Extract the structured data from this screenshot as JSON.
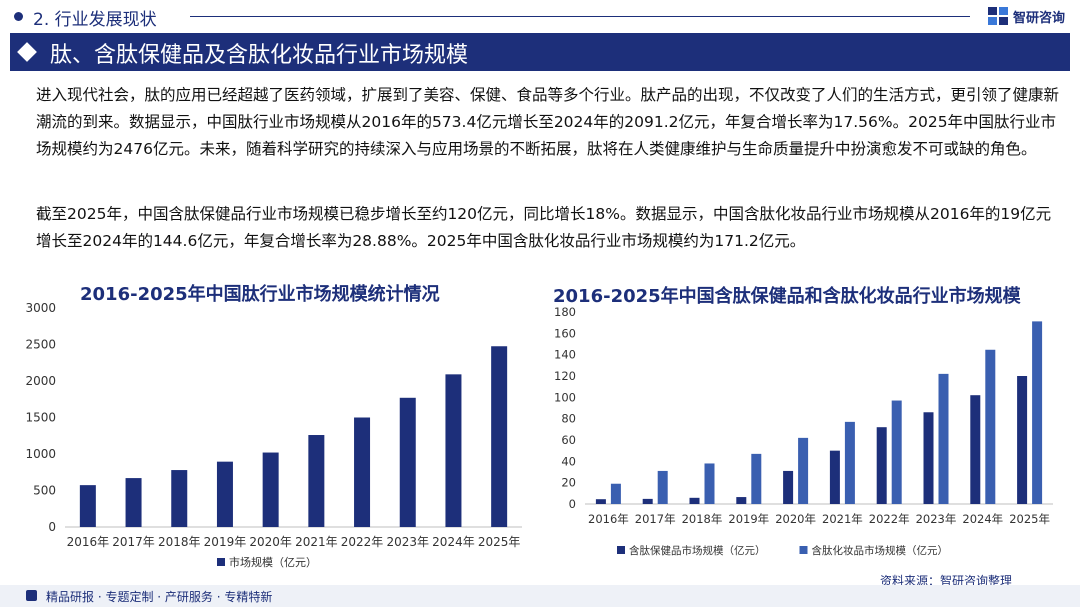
{
  "section": {
    "title": "2. 行业发展现状"
  },
  "brand": {
    "name": "智研咨询"
  },
  "banner": {
    "title": "肽、含肽保健品及含肽化妆品行业市场规模"
  },
  "paragraphs": [
    "进入现代社会，肽的应用已经超越了医药领域，扩展到了美容、保健、食品等多个行业。肽产品的出现，不仅改变了人们的生活方式，更引领了健康新潮流的到来。数据显示，中国肽行业市场规模从2016年的573.4亿元增长至2024年的2091.2亿元，年复合增长率为17.56%。2025年中国肽行业市场规模约为2476亿元。未来，随着科学研究的持续深入与应用场景的不断拓展，肽将在人类健康维护与生命质量提升中扮演愈发不可或缺的角色。",
    "截至2025年，中国含肽保健品行业市场规模已稳步增长至约120亿元，同比增长18%。数据显示，中国含肽化妆品行业市场规模从2016年的19亿元增长至2024年的144.6亿元，年复合增长率为28.88%。2025年中国含肽化妆品行业市场规模约为171.2亿元。"
  ],
  "chart_data": [
    {
      "type": "bar",
      "title": "2016-2025年中国肽行业市场规模统计情况",
      "categories": [
        "2016年",
        "2017年",
        "2018年",
        "2019年",
        "2020年",
        "2021年",
        "2022年",
        "2023年",
        "2024年",
        "2025年"
      ],
      "series": [
        {
          "name": "市场规模（亿元）",
          "values": [
            573.4,
            670,
            780,
            895,
            1020,
            1260,
            1500,
            1770,
            2091.2,
            2476
          ],
          "color": "#1d2f7a"
        }
      ],
      "ylim": [
        0,
        3000
      ],
      "yticks": [
        0,
        500,
        1000,
        1500,
        2000,
        2500,
        3000
      ],
      "legend": "bottom",
      "grid": false
    },
    {
      "type": "bar",
      "title": "2016-2025年中国含肽保健品和含肽化妆品行业市场规模",
      "categories": [
        "2016年",
        "2017年",
        "2018年",
        "2019年",
        "2020年",
        "2021年",
        "2022年",
        "2023年",
        "2024年",
        "2025年"
      ],
      "series": [
        {
          "name": "含肽保健品市场规模（亿元）",
          "values": [
            4.5,
            4.8,
            5.8,
            6.5,
            31,
            50,
            72,
            86,
            102,
            120
          ],
          "color": "#1d2f7a"
        },
        {
          "name": "含肽化妆品市场规模（亿元）",
          "values": [
            19,
            31,
            38,
            47,
            62,
            77,
            97,
            122,
            144.6,
            171.2
          ],
          "color": "#3a5fb0"
        }
      ],
      "ylim": [
        0,
        180
      ],
      "yticks": [
        0,
        20,
        40,
        60,
        80,
        100,
        120,
        140,
        160,
        180
      ],
      "legend": "bottom",
      "grid": false
    }
  ],
  "source": {
    "text": "资料来源：智研咨询整理"
  },
  "footer": {
    "text": "精品研报 · 专题定制 · 产研服务 · 专精特新"
  }
}
